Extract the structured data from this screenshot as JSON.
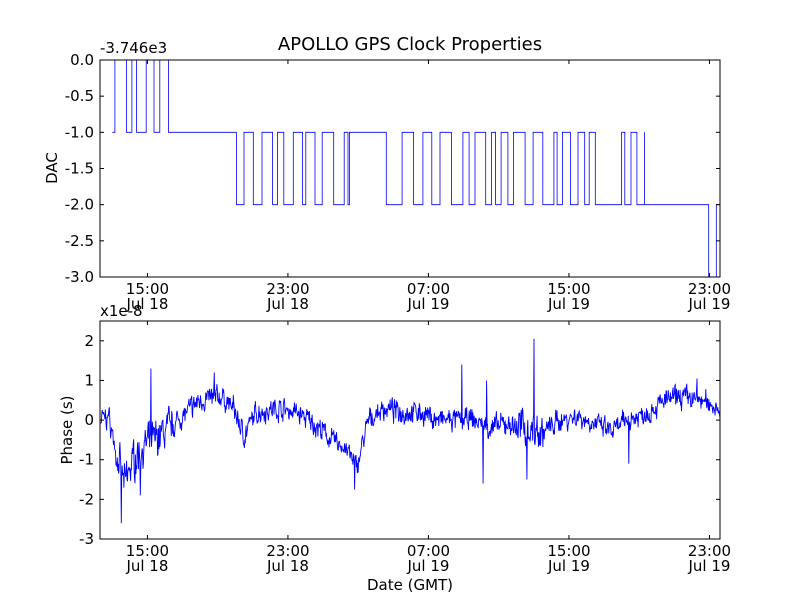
{
  "chart_data": [
    {
      "type": "line",
      "title": "APOLLO GPS Clock Properties",
      "xlabel": "",
      "ylabel": "DAC",
      "y_offset_label": "-3.746e3",
      "ylim": [
        -3.0,
        0.0
      ],
      "yticks": [
        "0.0",
        "-0.5",
        "-1.0",
        "-1.5",
        "-2.0",
        "-2.5",
        "-3.0"
      ],
      "xticks": [
        {
          "time": "15:00",
          "date": "Jul 18"
        },
        {
          "time": "23:00",
          "date": "Jul 18"
        },
        {
          "time": "07:00",
          "date": "Jul 19"
        },
        {
          "time": "15:00",
          "date": "Jul 19"
        },
        {
          "time": "23:00",
          "date": "Jul 19"
        }
      ],
      "xlim_hours": [
        12.3,
        47.6
      ],
      "line_color": "#0000ff",
      "series": [
        {
          "segments": [
            {
              "from": 12.3,
              "to": 13.0,
              "level": -1.0
            },
            {
              "from": 13.0,
              "to": 16.2,
              "level": -1.0,
              "toggle_to": 0.0
            },
            {
              "from": 16.2,
              "to": 19.5,
              "level": -1.0
            },
            {
              "from": 19.5,
              "to": 20.5,
              "level": -1.0,
              "toggle_to": -2.0
            },
            {
              "from": 20.5,
              "to": 26.5,
              "level": -1.0,
              "toggle_to": -2.0
            },
            {
              "from": 26.5,
              "to": 28.6,
              "level": -1.0
            },
            {
              "from": 28.6,
              "to": 29.5,
              "level": -2.0
            },
            {
              "from": 29.5,
              "to": 40.5,
              "level": -1.0,
              "toggle_to": -2.0
            },
            {
              "from": 40.5,
              "to": 42.0,
              "level": -2.0
            },
            {
              "from": 42.0,
              "to": 43.3,
              "level": -1.0,
              "toggle_to": -2.0
            },
            {
              "from": 43.3,
              "to": 46.3,
              "level": -2.0
            },
            {
              "from": 46.3,
              "to": 47.6,
              "level": -2.0,
              "toggle_to": -3.0
            }
          ]
        }
      ]
    },
    {
      "type": "line",
      "title": "",
      "xlabel": "Date (GMT)",
      "ylabel": "Phase (s)",
      "y_offset_label": "x1e-8",
      "ylim": [
        -3,
        2.5
      ],
      "yticks": [
        "2",
        "1",
        "0",
        "-1",
        "-2",
        "-3"
      ],
      "xticks": [
        {
          "time": "15:00",
          "date": "Jul 18"
        },
        {
          "time": "23:00",
          "date": "Jul 18"
        },
        {
          "time": "07:00",
          "date": "Jul 19"
        },
        {
          "time": "15:00",
          "date": "Jul 19"
        },
        {
          "time": "23:00",
          "date": "Jul 19"
        }
      ],
      "xlim_hours": [
        12.3,
        47.6
      ],
      "line_color": "#0000ff",
      "series": [
        {
          "trend": [
            {
              "x": 12.3,
              "y": 0.0
            },
            {
              "x": 12.8,
              "y": 0.1
            },
            {
              "x": 13.3,
              "y": -1.0
            },
            {
              "x": 13.7,
              "y": -1.6
            },
            {
              "x": 14.2,
              "y": -1.0
            },
            {
              "x": 15.0,
              "y": -0.6
            },
            {
              "x": 16.0,
              "y": -0.3
            },
            {
              "x": 17.0,
              "y": 0.1
            },
            {
              "x": 18.0,
              "y": 0.5
            },
            {
              "x": 19.2,
              "y": 0.6
            },
            {
              "x": 19.9,
              "y": 0.3
            },
            {
              "x": 20.5,
              "y": -0.4
            },
            {
              "x": 21.2,
              "y": 0.2
            },
            {
              "x": 22.5,
              "y": 0.3
            },
            {
              "x": 23.5,
              "y": 0.2
            },
            {
              "x": 24.5,
              "y": -0.1
            },
            {
              "x": 25.5,
              "y": -0.5
            },
            {
              "x": 26.3,
              "y": -0.7
            },
            {
              "x": 26.9,
              "y": -1.2
            },
            {
              "x": 27.6,
              "y": 0.0
            },
            {
              "x": 28.5,
              "y": 0.3
            },
            {
              "x": 29.5,
              "y": 0.2
            },
            {
              "x": 30.5,
              "y": 0.2
            },
            {
              "x": 31.5,
              "y": 0.0
            },
            {
              "x": 32.5,
              "y": 0.0
            },
            {
              "x": 33.5,
              "y": 0.0
            },
            {
              "x": 34.5,
              "y": -0.2
            },
            {
              "x": 35.5,
              "y": -0.1
            },
            {
              "x": 36.5,
              "y": -0.2
            },
            {
              "x": 37.5,
              "y": -0.3
            },
            {
              "x": 38.5,
              "y": 0.0
            },
            {
              "x": 39.5,
              "y": 0.1
            },
            {
              "x": 40.5,
              "y": -0.1
            },
            {
              "x": 41.5,
              "y": -0.3
            },
            {
              "x": 42.3,
              "y": 0.0
            },
            {
              "x": 43.5,
              "y": 0.2
            },
            {
              "x": 44.5,
              "y": 0.5
            },
            {
              "x": 45.5,
              "y": 0.6
            },
            {
              "x": 46.5,
              "y": 0.5
            },
            {
              "x": 47.6,
              "y": 0.3
            }
          ],
          "spikes": [
            {
              "x": 13.5,
              "y": -2.6
            },
            {
              "x": 15.2,
              "y": 1.3
            },
            {
              "x": 14.6,
              "y": -1.9
            },
            {
              "x": 18.8,
              "y": 1.2
            },
            {
              "x": 26.8,
              "y": -1.75
            },
            {
              "x": 32.9,
              "y": 1.4
            },
            {
              "x": 34.3,
              "y": 1.0
            },
            {
              "x": 34.1,
              "y": -1.6
            },
            {
              "x": 37.0,
              "y": 2.05
            },
            {
              "x": 36.6,
              "y": -1.5
            },
            {
              "x": 42.4,
              "y": -1.1
            },
            {
              "x": 46.3,
              "y": 1.05
            }
          ]
        }
      ]
    }
  ]
}
